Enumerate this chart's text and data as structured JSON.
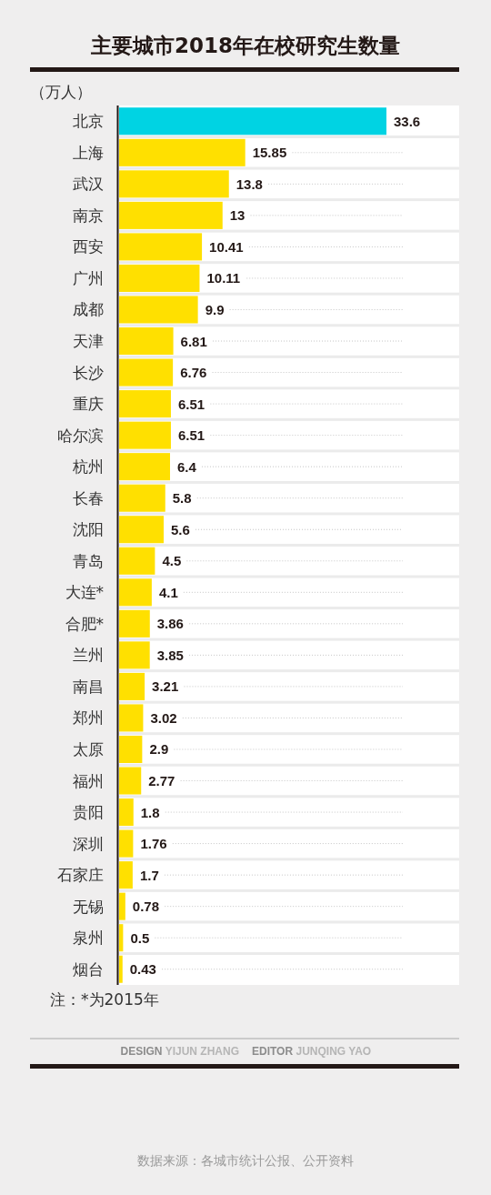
{
  "chart_data": {
    "type": "bar",
    "orientation": "horizontal",
    "title": "主要城市2018年在校研究生数量",
    "subtitle": "（万人）",
    "categories": [
      "北京",
      "上海",
      "武汉",
      "南京",
      "西安",
      "广州",
      "成都",
      "天津",
      "长沙",
      "重庆",
      "哈尔滨",
      "杭州",
      "长春",
      "沈阳",
      "青岛",
      "大连*",
      "合肥*",
      "兰州",
      "南昌",
      "郑州",
      "太原",
      "福州",
      "贵阳",
      "深圳",
      "石家庄",
      "无锡",
      "泉州",
      "烟台"
    ],
    "values": [
      33.6,
      15.85,
      13.8,
      13,
      10.41,
      10.11,
      9.9,
      6.81,
      6.76,
      6.51,
      6.51,
      6.4,
      5.8,
      5.6,
      4.5,
      4.1,
      3.86,
      3.85,
      3.21,
      3.02,
      2.9,
      2.77,
      1.8,
      1.76,
      1.7,
      0.78,
      0.5,
      0.43
    ],
    "colors": [
      "#00d3e3",
      "#ffe000",
      "#ffe000",
      "#ffe000",
      "#ffe000",
      "#ffe000",
      "#ffe000",
      "#ffe000",
      "#ffe000",
      "#ffe000",
      "#ffe000",
      "#ffe000",
      "#ffe000",
      "#ffe000",
      "#ffe000",
      "#ffe000",
      "#ffe000",
      "#ffe000",
      "#ffe000",
      "#ffe000",
      "#ffe000",
      "#ffe000",
      "#ffe000",
      "#ffe000",
      "#ffe000",
      "#ffe000",
      "#ffe000",
      "#ffe000"
    ],
    "data_labels": true,
    "grid": "y",
    "annotations": [
      "注：*为2015年",
      "DESIGN YIJUN ZHANG",
      "EDITOR JUNQING YAO",
      "数据来源：各城市统计公报、公开资料"
    ]
  }
}
